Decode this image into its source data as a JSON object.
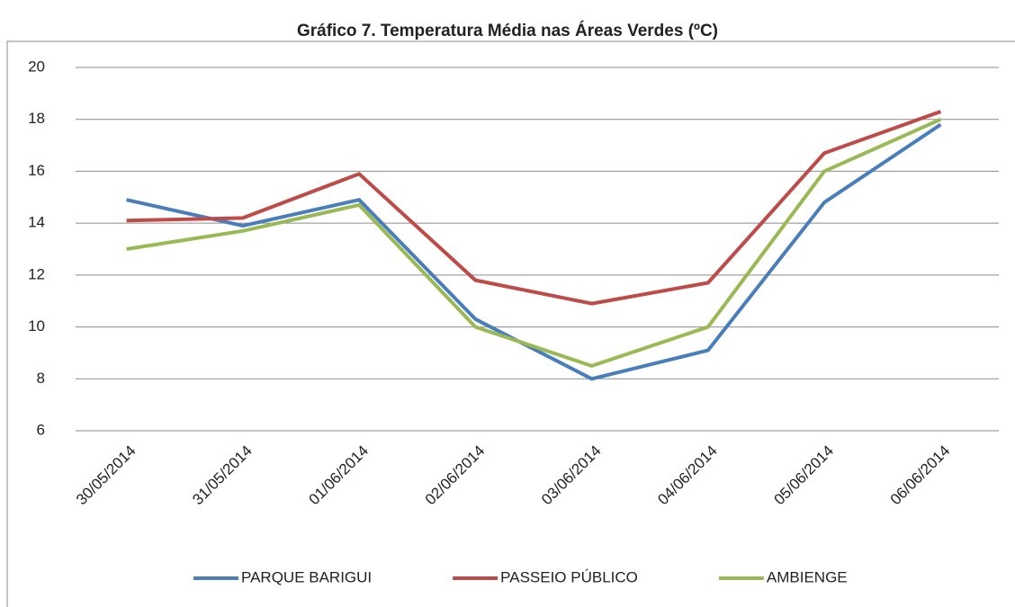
{
  "chart_data": {
    "type": "line",
    "title": "Gráfico 7. Temperatura Média nas Áreas Verdes (ºC)",
    "categories": [
      "30/05/2014",
      "31/05/2014",
      "01/06/2014",
      "02/06/2014",
      "03/06/2014",
      "04/06/2014",
      "05/06/2014",
      "06/06/2014"
    ],
    "series": [
      {
        "name": "PARQUE BARIGUI",
        "color": "#4a7ebb",
        "values": [
          14.9,
          13.9,
          14.9,
          10.3,
          8.0,
          9.1,
          14.8,
          17.8
        ]
      },
      {
        "name": "PASSEIO PÚBLICO",
        "color": "#be4b48",
        "values": [
          14.1,
          14.2,
          15.9,
          11.8,
          10.9,
          11.7,
          16.7,
          18.3
        ]
      },
      {
        "name": "AMBIENGE",
        "color": "#98b954",
        "values": [
          13.0,
          13.7,
          14.7,
          10.0,
          8.5,
          10.0,
          16.0,
          18.0
        ]
      }
    ],
    "ylim": [
      6,
      20
    ],
    "yticks": [
      6,
      8,
      10,
      12,
      14,
      16,
      18,
      20
    ],
    "grid": true,
    "legend": "bottom"
  }
}
